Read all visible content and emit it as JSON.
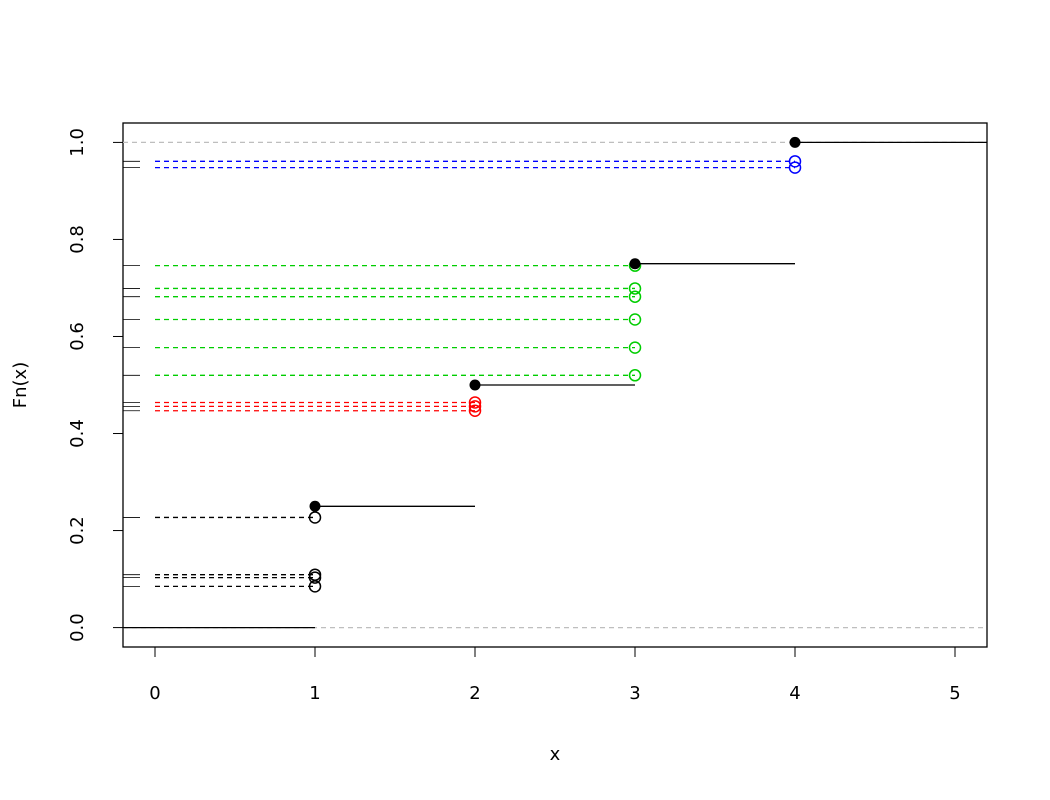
{
  "chart_data": {
    "type": "step",
    "x_label": "x",
    "y_label": "Fn(x)",
    "xlim": [
      -0.2,
      5.2
    ],
    "ylim": [
      -0.04,
      1.04
    ],
    "xticks": [
      0,
      1,
      2,
      3,
      4,
      5
    ],
    "yticks": [
      {
        "value": 0,
        "label": "0.0"
      },
      {
        "value": 0.2,
        "label": "0.2"
      },
      {
        "value": 0.4,
        "label": "0.4"
      },
      {
        "value": 0.6,
        "label": "0.6"
      },
      {
        "value": 0.8,
        "label": "0.8"
      },
      {
        "value": 1,
        "label": "1.0"
      }
    ],
    "steps": {
      "x": [
        1,
        2,
        3,
        4
      ],
      "y": [
        0.25,
        0.5,
        0.75,
        1
      ],
      "color": "#000000"
    },
    "reference_lines": {
      "values": [
        0,
        1
      ],
      "color": "#bebebe"
    },
    "samples": [
      {
        "color": "#000000",
        "x": 1,
        "values": [
          0.227,
          0.109,
          0.103,
          0.085
        ]
      },
      {
        "color": "#ff0000",
        "x": 2,
        "values": [
          0.464,
          0.456,
          0.447
        ]
      },
      {
        "color": "#00cd00",
        "x": 3,
        "values": [
          0.746,
          0.699,
          0.682,
          0.635,
          0.577,
          0.52
        ]
      },
      {
        "color": "#0000ff",
        "x": 4,
        "values": [
          0.961,
          0.948
        ]
      }
    ]
  }
}
